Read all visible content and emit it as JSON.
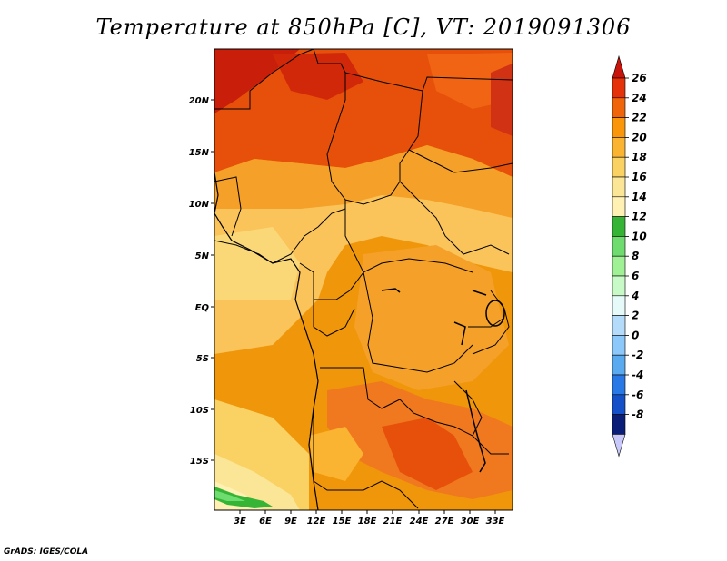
{
  "title": "Temperature at 850hPa [C], VT: 2019091306",
  "credit": "GrADS: IGES/COLA",
  "map": {
    "lon_labels": [
      "3E",
      "6E",
      "9E",
      "12E",
      "15E",
      "18E",
      "21E",
      "24E",
      "27E",
      "30E",
      "33E"
    ],
    "lat_labels": [
      "20N",
      "15N",
      "10N",
      "5N",
      "EQ",
      "5S",
      "10S",
      "15S"
    ]
  },
  "colorbar": {
    "levels": [
      26,
      24,
      22,
      20,
      18,
      16,
      14,
      12,
      10,
      8,
      6,
      4,
      2,
      0,
      -2,
      -4,
      -6,
      -8
    ],
    "colors": [
      "#c8140a",
      "#e6320a",
      "#f0640a",
      "#fa960a",
      "#fab432",
      "#fad264",
      "#fae696",
      "#fff0b4",
      "#36b436",
      "#6edc6e",
      "#a0f096",
      "#c8fac8",
      "#e6fafa",
      "#b4dcfa",
      "#8cc8fa",
      "#5aaaf0",
      "#2878e6",
      "#1450c8",
      "#0a1e78",
      "#c8c8fa"
    ]
  }
}
